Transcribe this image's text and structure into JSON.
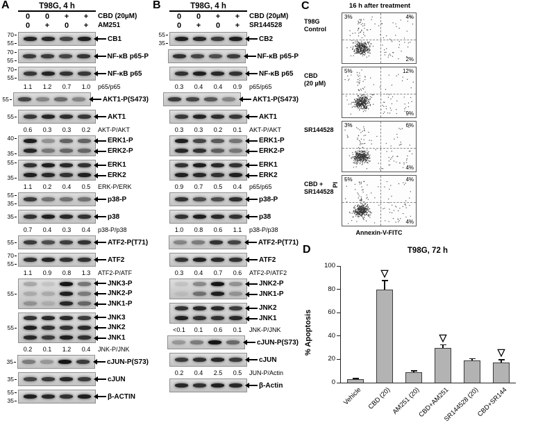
{
  "panel_a": {
    "letter": "A",
    "title": "T98G,  4 h",
    "dose_rows": [
      {
        "doses": [
          "0",
          "0",
          "+",
          "+"
        ],
        "label": "CBD (20µM)"
      },
      {
        "doses": [
          "0",
          "+",
          "0",
          "+"
        ],
        "label": "AM251"
      }
    ],
    "rows": [
      {
        "type": "blot",
        "mw": [
          "70",
          "55"
        ],
        "labels": [
          "CB1"
        ],
        "lanes": [
          0.92,
          0.95,
          0.85,
          0.95
        ]
      },
      {
        "type": "blot",
        "mw": [
          "70",
          "55"
        ],
        "labels": [
          "NF-κB p65-P"
        ],
        "lanes": [
          0.85,
          0.9,
          0.75,
          0.88
        ]
      },
      {
        "type": "blot",
        "mw": [
          "70",
          "55"
        ],
        "labels": [
          "NF-κB p65"
        ],
        "lanes": [
          0.92,
          0.92,
          0.9,
          0.92
        ]
      },
      {
        "type": "ratio",
        "values": [
          "1.1",
          "1.2",
          "0.7",
          "1.0"
        ],
        "label": "p65/p65"
      },
      {
        "type": "blot",
        "mw": [
          "55"
        ],
        "labels": [
          "AKT1-P(S473)"
        ],
        "lanes": [
          0.8,
          0.5,
          0.55,
          0.45
        ]
      },
      {
        "type": "blot",
        "mw": [
          "55"
        ],
        "labels": [
          "AKT1"
        ],
        "lanes": [
          0.92,
          0.92,
          0.92,
          0.92
        ]
      },
      {
        "type": "ratio",
        "values": [
          "0.6",
          "0.3",
          "0.3",
          "0.2"
        ],
        "label": "AKT-P/AKT"
      },
      {
        "type": "blot",
        "mw": [
          "40",
          "35"
        ],
        "labels": [
          "ERK1-P",
          "ERK2-P"
        ],
        "lanes": [
          1,
          0.45,
          0.6,
          0.65
        ]
      },
      {
        "type": "blot",
        "mw": [
          "55",
          "35"
        ],
        "labels": [
          "ERK1",
          "ERK2"
        ],
        "lanes": [
          0.95,
          0.95,
          0.95,
          0.95
        ]
      },
      {
        "type": "ratio",
        "values": [
          "1.1",
          "0.2",
          "0.4",
          "0.5"
        ],
        "label": "ERK-P/ERK"
      },
      {
        "type": "blot",
        "mw": [
          "55",
          "35"
        ],
        "labels": [
          "p38-P"
        ],
        "lanes": [
          0.85,
          0.6,
          0.5,
          0.55
        ]
      },
      {
        "type": "blot",
        "mw": [
          "35"
        ],
        "labels": [
          "p38"
        ],
        "lanes": [
          0.95,
          0.95,
          0.95,
          0.95
        ]
      },
      {
        "type": "ratio",
        "values": [
          "0.7",
          "0.4",
          "0.3",
          "0.4"
        ],
        "label": "p38-P/p38"
      },
      {
        "type": "blot",
        "mw": [
          "55"
        ],
        "labels": [
          "ATF2-P(T71)"
        ],
        "lanes": [
          0.85,
          0.8,
          0.78,
          0.9
        ]
      },
      {
        "type": "blot",
        "mw": [
          "70",
          "55"
        ],
        "labels": [
          "ATF2"
        ],
        "lanes": [
          0.95,
          0.92,
          0.9,
          0.95
        ]
      },
      {
        "type": "ratio",
        "values": [
          "1.1",
          "0.9",
          "0.8",
          "1.3"
        ],
        "label": "ATF2-P/ATF"
      },
      {
        "type": "blot",
        "mw": [
          "55"
        ],
        "labels": [
          "JNK3-P",
          "JNK2-P",
          "JNK1-P"
        ],
        "lanes": [
          0.3,
          0.2,
          1,
          0.55
        ]
      },
      {
        "type": "blot",
        "mw": [
          "55"
        ],
        "labels": [
          "JNK3",
          "JNK2",
          "JNK1"
        ],
        "lanes": [
          0.95,
          0.9,
          0.95,
          0.9
        ]
      },
      {
        "type": "ratio",
        "values": [
          "0.2",
          "0.1",
          "1.2",
          "0.4"
        ],
        "label": "JNK-P/JNK"
      },
      {
        "type": "blot",
        "mw": [
          "35"
        ],
        "labels": [
          "cJUN-P(S73)"
        ],
        "lanes": [
          0.5,
          0.4,
          1,
          0.85
        ]
      },
      {
        "type": "blot",
        "mw": [
          "35"
        ],
        "labels": [
          "cJUN"
        ],
        "lanes": [
          0.85,
          0.8,
          0.95,
          0.9
        ]
      },
      {
        "type": "blot",
        "mw": [
          "55",
          "35"
        ],
        "labels": [
          "β-ACTIN"
        ],
        "lanes": [
          0.95,
          0.95,
          0.95,
          0.95
        ]
      }
    ]
  },
  "panel_b": {
    "letter": "B",
    "title": "T98G,  4 h",
    "dose_rows": [
      {
        "doses": [
          "0",
          "0",
          "+",
          "+"
        ],
        "label": "CBD (20µM)"
      },
      {
        "doses": [
          "0",
          "+",
          "0",
          "+"
        ],
        "label": "SR144528"
      }
    ],
    "rows": [
      {
        "type": "blot",
        "mw": [
          "55",
          "35"
        ],
        "labels": [
          "CB2"
        ],
        "lanes": [
          0.95,
          0.95,
          0.9,
          0.95
        ]
      },
      {
        "type": "blot",
        "mw": [],
        "labels": [
          "NF-κB p65-P"
        ],
        "lanes": [
          0.9,
          0.85,
          0.7,
          0.85
        ]
      },
      {
        "type": "blot",
        "mw": [],
        "labels": [
          "NF-κB p65"
        ],
        "lanes": [
          0.95,
          0.95,
          0.95,
          0.95
        ]
      },
      {
        "type": "ratio",
        "values": [
          "0.3",
          "0.4",
          "0.4",
          "0.9"
        ],
        "label": "p65/p65"
      },
      {
        "type": "blot",
        "mw": [],
        "labels": [
          "AKT1-P(S473)"
        ],
        "lanes": [
          0.85,
          0.85,
          0.65,
          0.45
        ]
      },
      {
        "type": "blot",
        "mw": [],
        "labels": [
          "AKT1"
        ],
        "lanes": [
          0.92,
          0.92,
          0.92,
          0.92
        ]
      },
      {
        "type": "ratio",
        "values": [
          "0.3",
          "0.3",
          "0.2",
          "0.1"
        ],
        "label": "AKT-P/AKT"
      },
      {
        "type": "blot",
        "mw": [],
        "labels": [
          "ERK1-P",
          "ERK2-P"
        ],
        "lanes": [
          1,
          0.85,
          0.65,
          0.55
        ]
      },
      {
        "type": "blot",
        "mw": [],
        "labels": [
          "ERK1",
          "ERK2"
        ],
        "lanes": [
          0.95,
          0.95,
          0.95,
          0.95
        ]
      },
      {
        "type": "ratio",
        "values": [
          "0.9",
          "0.7",
          "0.5",
          "0.4"
        ],
        "label": "p65/p65"
      },
      {
        "type": "blot",
        "mw": [],
        "labels": [
          "p38-P"
        ],
        "lanes": [
          0.9,
          0.8,
          0.7,
          0.92
        ]
      },
      {
        "type": "blot",
        "mw": [],
        "labels": [
          "p38"
        ],
        "lanes": [
          0.95,
          0.95,
          0.95,
          0.95
        ]
      },
      {
        "type": "ratio",
        "values": [
          "1.0",
          "0.8",
          "0.6",
          "1.1"
        ],
        "label": "p38-P/p38"
      },
      {
        "type": "blot",
        "mw": [],
        "labels": [
          "ATF2-P(T71)"
        ],
        "lanes": [
          0.45,
          0.55,
          0.85,
          0.8
        ]
      },
      {
        "type": "blot",
        "mw": [],
        "labels": [
          "ATF2"
        ],
        "lanes": [
          0.95,
          0.95,
          0.95,
          0.95
        ]
      },
      {
        "type": "ratio",
        "values": [
          "0.3",
          "0.4",
          "0.7",
          "0.6"
        ],
        "label": "ATF2-P/ATF2"
      },
      {
        "type": "blot",
        "mw": [],
        "labels": [
          "JNK2-P",
          "JNK1-P"
        ],
        "lanes": [
          0.15,
          0.5,
          1,
          0.4
        ]
      },
      {
        "type": "blot",
        "mw": [],
        "labels": [
          "JNK2",
          "JNK1"
        ],
        "lanes": [
          0.95,
          0.9,
          0.95,
          0.9
        ]
      },
      {
        "type": "ratio",
        "values": [
          "<0.1",
          "0.1",
          "0.6",
          "0.1"
        ],
        "label": "JNK-P/JNK"
      },
      {
        "type": "blot",
        "mw": [],
        "labels": [
          "cJUN-P(S73)"
        ],
        "lanes": [
          0.35,
          0.55,
          1,
          0.6
        ]
      },
      {
        "type": "blot",
        "mw": [],
        "labels": [
          "cJUN"
        ],
        "lanes": [
          0.9,
          0.85,
          0.95,
          0.9
        ]
      },
      {
        "type": "ratio",
        "values": [
          "0.2",
          "0.4",
          "2.5",
          "0.5"
        ],
        "label": "JUN-P/Actin"
      },
      {
        "type": "blot",
        "mw": [],
        "labels": [
          "β-Actin"
        ],
        "lanes": [
          0.95,
          0.95,
          0.95,
          0.95
        ]
      }
    ]
  },
  "panel_c": {
    "letter": "C",
    "title": "16 h after treatment",
    "y_label": "PI",
    "x_label": "Annexin-V-FITC",
    "plots": [
      {
        "label_lines": [
          "T98G",
          "Control"
        ],
        "top_left": "3%",
        "top_right": "4%",
        "bottom_right": "2%"
      },
      {
        "label_lines": [
          "CBD",
          "(20 µM)"
        ],
        "top_left": "5%",
        "top_right": "12%",
        "bottom_right": "9%"
      },
      {
        "label_lines": [
          "SR144528"
        ],
        "top_left": "3%",
        "top_right": "6%",
        "bottom_right": "4%"
      },
      {
        "label_lines": [
          "CBD +",
          "SR144528"
        ],
        "top_left": "5%",
        "top_right": "4%",
        "bottom_right": "4%"
      }
    ]
  },
  "chart_data": {
    "type": "bar",
    "panel_letter": "D",
    "title": "T98G, 72 h",
    "ylabel": "% Apoptosis",
    "ylim": [
      0,
      100
    ],
    "yticks": [
      0,
      20,
      40,
      60,
      80,
      100
    ],
    "categories": [
      "Vehicle",
      "CBD (20)",
      "AM251 (20)",
      "CBD+AM251",
      "SR144528 (20)",
      "CBD+SR144"
    ],
    "values": [
      3,
      80,
      9,
      30,
      19,
      17
    ],
    "errors": [
      1,
      8,
      1.5,
      3,
      2,
      3
    ],
    "marker_indices": [
      1,
      3,
      5
    ],
    "marker_glyph": "▽",
    "bar_color": "#b3b3b3"
  }
}
